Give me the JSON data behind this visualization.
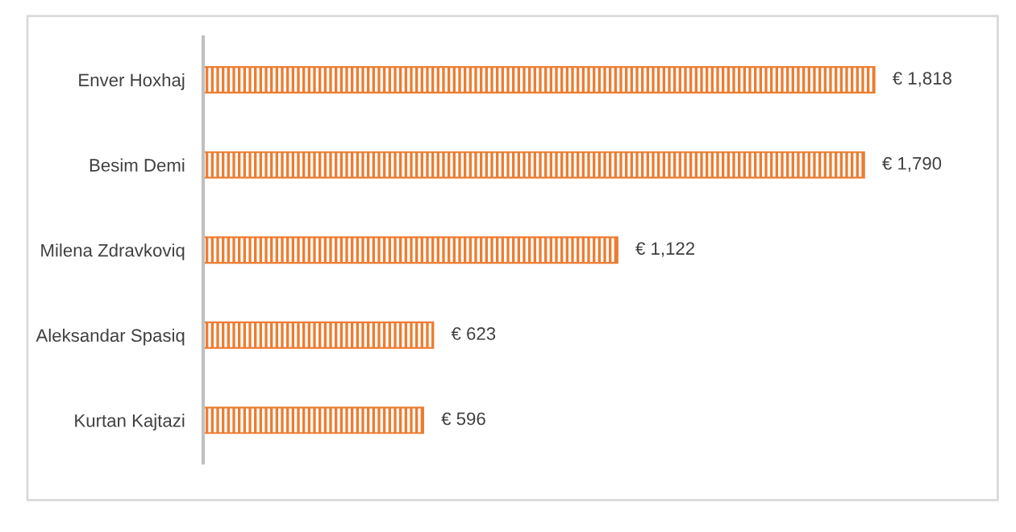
{
  "chart_data": {
    "type": "bar",
    "orientation": "horizontal",
    "categories": [
      "Enver Hoxhaj",
      "Besim Demi",
      "Milena Zdravkoviq",
      "Aleksandar Spasiq",
      "Kurtan Kajtazi"
    ],
    "series": [
      {
        "color": "#ed7d31",
        "values": [
          1818,
          1790,
          1122,
          623,
          596
        ],
        "value_labels": [
          "€ 1,818",
          "€ 1,790",
          "€ 1,122",
          "€ 623",
          "€ 596"
        ]
      }
    ],
    "legend": false
  }
}
